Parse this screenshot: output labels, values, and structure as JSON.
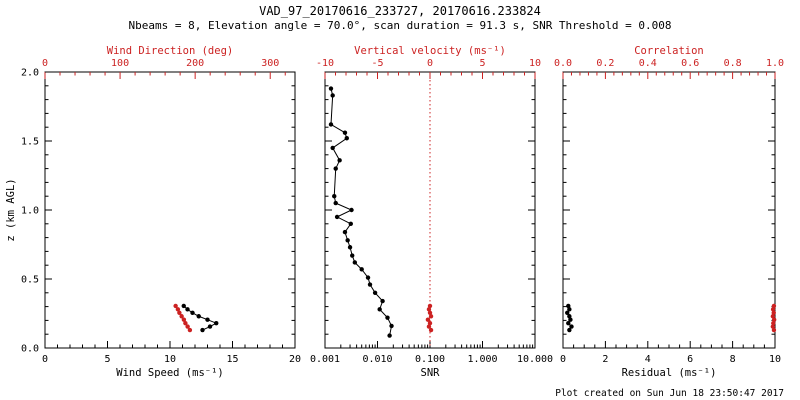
{
  "title": "VAD_97_20170616_233727, 20170616.233824",
  "subtitle": "Nbeams = 8, Elevation angle = 70.0°, scan duration = 91.3 s, SNR Threshold = 0.008",
  "footer": "Plot created on Sun Jun 18 23:50:47 2017",
  "colors": {
    "black": "#000000",
    "red": "#cc2222",
    "background": "#ffffff"
  },
  "y_axis": {
    "label": "z (km AGL)",
    "lim": [
      0,
      2
    ],
    "ticks": [
      0,
      0.5,
      1,
      1.5,
      2
    ],
    "labels": [
      "0.0",
      "0.5",
      "1.0",
      "1.5",
      "2.0"
    ],
    "minor_step": 0.1
  },
  "chart_data": [
    {
      "id": "wind",
      "type": "scatter",
      "x_bottom": {
        "label": "Wind Speed (ms⁻¹)",
        "lim": [
          0,
          20
        ],
        "ticks": [
          0,
          5,
          10,
          15,
          20
        ],
        "labels": [
          "0",
          "5",
          "10",
          "15",
          "20"
        ],
        "scale": "linear",
        "minor": 5
      },
      "x_top": {
        "label": "Wind Direction (deg)",
        "lim": [
          0,
          333
        ],
        "ticks": [
          0,
          100,
          200,
          300
        ],
        "labels": [
          "0",
          "100",
          "200",
          "300"
        ],
        "scale": "linear",
        "minor": 5
      },
      "show_y_labels": true,
      "series": [
        {
          "name": "wind-speed",
          "axis": "bottom",
          "color": "black",
          "line": true,
          "z": [
            0.13,
            0.155,
            0.18,
            0.205,
            0.23,
            0.255,
            0.28,
            0.305
          ],
          "values": [
            12.6,
            13.2,
            13.7,
            13.0,
            12.3,
            11.8,
            11.4,
            11.1
          ]
        },
        {
          "name": "wind-direction",
          "axis": "top",
          "color": "red",
          "line": true,
          "z": [
            0.13,
            0.155,
            0.18,
            0.205,
            0.23,
            0.255,
            0.28,
            0.305
          ],
          "values": [
            193,
            190,
            187,
            185,
            182,
            179,
            177,
            174
          ]
        }
      ]
    },
    {
      "id": "snr",
      "type": "line",
      "x_bottom": {
        "label": "SNR",
        "lim": [
          0.001,
          10
        ],
        "ticks": [
          0.001,
          0.01,
          0.1,
          1,
          10
        ],
        "labels": [
          "0.001",
          "0.010",
          "0.100",
          "1.000",
          "10.000"
        ],
        "scale": "log"
      },
      "x_top": {
        "label": "Vertical velocity (ms⁻¹)",
        "lim": [
          -10,
          10
        ],
        "ticks": [
          -10,
          -5,
          0,
          5,
          10
        ],
        "labels": [
          "-10",
          "-5",
          "0",
          "5",
          "10"
        ],
        "scale": "linear",
        "minor": 5,
        "refline": 0
      },
      "show_y_labels": false,
      "series": [
        {
          "name": "snr-profile",
          "axis": "bottom",
          "color": "black",
          "line": true,
          "z": [
            0.09,
            0.16,
            0.22,
            0.28,
            0.34,
            0.4,
            0.46,
            0.51,
            0.57,
            0.62,
            0.67,
            0.73,
            0.78,
            0.84,
            0.9,
            0.95,
            1.0,
            1.05,
            1.1,
            1.3,
            1.36,
            1.45,
            1.52,
            1.56,
            1.62,
            1.83,
            1.88
          ],
          "values": [
            0.017,
            0.0185,
            0.0155,
            0.011,
            0.0125,
            0.009,
            0.0072,
            0.0066,
            0.005,
            0.0037,
            0.0033,
            0.003,
            0.0027,
            0.0024,
            0.0031,
            0.0017,
            0.0032,
            0.0016,
            0.0015,
            0.0016,
            0.0019,
            0.0014,
            0.0026,
            0.0024,
            0.0013,
            0.0014,
            0.0013
          ]
        },
        {
          "name": "vertical-velocity",
          "axis": "top",
          "color": "red",
          "line": true,
          "z": [
            0.13,
            0.155,
            0.18,
            0.205,
            0.23,
            0.255,
            0.28,
            0.305
          ],
          "values": [
            0.1,
            -0.1,
            0.0,
            -0.2,
            0.1,
            0.0,
            -0.1,
            0.0
          ]
        }
      ]
    },
    {
      "id": "residual",
      "type": "scatter",
      "x_bottom": {
        "label": "Residual (ms⁻¹)",
        "lim": [
          0,
          10
        ],
        "ticks": [
          0,
          2,
          4,
          6,
          8,
          10
        ],
        "labels": [
          "0",
          "2",
          "4",
          "6",
          "8",
          "10"
        ],
        "scale": "linear",
        "minor": 4
      },
      "x_top": {
        "label": "Correlation",
        "lim": [
          0,
          1
        ],
        "ticks": [
          0,
          0.2,
          0.4,
          0.6,
          0.8,
          1
        ],
        "labels": [
          "0.0",
          "0.2",
          "0.4",
          "0.6",
          "0.8",
          "1.0"
        ],
        "scale": "linear",
        "minor": 5
      },
      "show_y_labels": false,
      "series": [
        {
          "name": "residual",
          "axis": "bottom",
          "color": "black",
          "line": true,
          "z": [
            0.13,
            0.155,
            0.18,
            0.205,
            0.23,
            0.255,
            0.28,
            0.305
          ],
          "values": [
            0.3,
            0.4,
            0.25,
            0.35,
            0.3,
            0.2,
            0.3,
            0.25
          ]
        },
        {
          "name": "correlation",
          "axis": "top",
          "color": "red",
          "line": true,
          "z": [
            0.13,
            0.155,
            0.18,
            0.205,
            0.23,
            0.255,
            0.28,
            0.305
          ],
          "values": [
            0.995,
            0.99,
            0.992,
            0.996,
            0.99,
            0.994,
            0.991,
            0.995
          ]
        }
      ]
    }
  ]
}
